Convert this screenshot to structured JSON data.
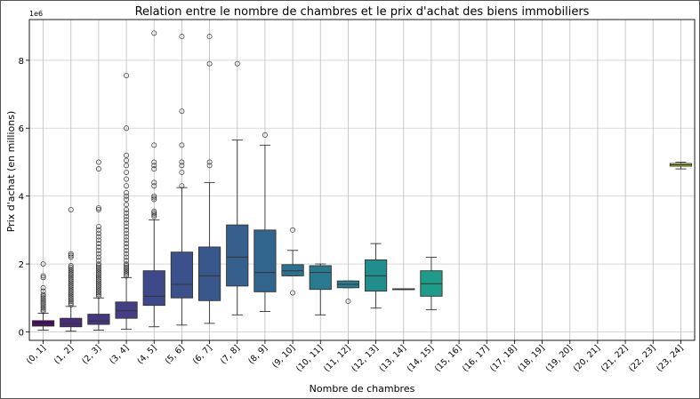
{
  "chart_data": {
    "type": "box",
    "title": "Relation entre le nombre de chambres et le prix d'achat des biens immobiliers",
    "xlabel": "Nombre de chambres",
    "ylabel": "Prix d'achat (en millions)",
    "y_offset_label": "1e6",
    "y_ticks": [
      0,
      2,
      4,
      6,
      8
    ],
    "ylim": [
      -0.25,
      9.2
    ],
    "grid": true,
    "legend": "none",
    "categories": [
      "(0, 1]",
      "(1, 2]",
      "(2, 3]",
      "(3, 4]",
      "(4, 5]",
      "(5, 6]",
      "(6, 7]",
      "(7, 8]",
      "(8, 9]",
      "(9, 10]",
      "(10, 11]",
      "(11, 12]",
      "(12, 13]",
      "(13, 14]",
      "(14, 15]",
      "(15, 16]",
      "(16, 17]",
      "(17, 18]",
      "(18, 19]",
      "(19, 20]",
      "(20, 21]",
      "(21, 22]",
      "(22, 23]",
      "(23, 24]"
    ],
    "boxes": [
      {
        "category": "(0, 1]",
        "color": "#46085c",
        "whisker_low": 0.05,
        "q1": 0.17,
        "median": 0.22,
        "q3": 0.33,
        "whisker_high": 0.55,
        "outliers": [
          0.6,
          0.65,
          0.7,
          0.75,
          0.8,
          0.85,
          0.9,
          0.95,
          1.0,
          1.05,
          1.1,
          1.2,
          1.3,
          1.6,
          1.65,
          2.0
        ]
      },
      {
        "category": "(1, 2]",
        "color": "#472c7a",
        "whisker_low": 0.02,
        "q1": 0.15,
        "median": 0.24,
        "q3": 0.4,
        "whisker_high": 0.75,
        "outliers": [
          0.8,
          0.85,
          0.9,
          0.95,
          1.0,
          1.05,
          1.1,
          1.15,
          1.2,
          1.25,
          1.3,
          1.35,
          1.4,
          1.45,
          1.5,
          1.55,
          1.6,
          1.65,
          1.7,
          1.75,
          1.8,
          1.85,
          1.9,
          1.95,
          2.2,
          2.25,
          2.3,
          3.6
        ]
      },
      {
        "category": "(2, 3]",
        "color": "#453781",
        "whisker_low": 0.05,
        "q1": 0.22,
        "median": 0.32,
        "q3": 0.52,
        "whisker_high": 1.0,
        "outliers": [
          1.05,
          1.1,
          1.15,
          1.2,
          1.25,
          1.3,
          1.35,
          1.4,
          1.45,
          1.5,
          1.55,
          1.6,
          1.65,
          1.7,
          1.75,
          1.8,
          1.85,
          1.9,
          1.95,
          2.0,
          2.1,
          2.2,
          2.3,
          2.4,
          2.5,
          2.6,
          2.7,
          2.8,
          2.9,
          3.0,
          3.1,
          3.6,
          3.65,
          4.8,
          5.0
        ]
      },
      {
        "category": "(3, 4]",
        "color": "#433e85",
        "whisker_low": 0.08,
        "q1": 0.4,
        "median": 0.62,
        "q3": 0.88,
        "whisker_high": 1.6,
        "outliers": [
          1.65,
          1.7,
          1.75,
          1.8,
          1.85,
          1.9,
          1.95,
          2.0,
          2.1,
          2.2,
          2.3,
          2.4,
          2.5,
          2.6,
          2.7,
          2.8,
          2.9,
          3.0,
          3.1,
          3.2,
          3.3,
          3.4,
          3.5,
          3.6,
          3.75,
          3.9,
          4.0,
          4.1,
          4.3,
          4.5,
          4.7,
          4.9,
          5.05,
          5.2,
          6.0,
          7.55
        ]
      },
      {
        "category": "(4, 5]",
        "color": "#3e4989",
        "whisker_low": 0.15,
        "q1": 0.78,
        "median": 1.05,
        "q3": 1.8,
        "whisker_high": 3.3,
        "outliers": [
          3.4,
          3.45,
          3.5,
          3.55,
          3.9,
          3.95,
          4.0,
          4.3,
          4.4,
          4.8,
          4.9,
          5.0,
          5.5,
          8.8
        ]
      },
      {
        "category": "(5, 6]",
        "color": "#3b518b",
        "whisker_low": 0.2,
        "q1": 1.0,
        "median": 1.4,
        "q3": 2.35,
        "whisker_high": 4.25,
        "outliers": [
          4.3,
          4.7,
          4.9,
          5.0,
          5.5,
          6.5,
          8.7
        ]
      },
      {
        "category": "(6, 7]",
        "color": "#38588c",
        "whisker_low": 0.25,
        "q1": 0.92,
        "median": 1.65,
        "q3": 2.5,
        "whisker_high": 4.4,
        "outliers": [
          4.9,
          5.0,
          7.9,
          8.7
        ]
      },
      {
        "category": "(7, 8]",
        "color": "#355f8d",
        "whisker_low": 0.5,
        "q1": 1.35,
        "median": 2.2,
        "q3": 3.15,
        "whisker_high": 5.65,
        "outliers": [
          7.9
        ]
      },
      {
        "category": "(8, 9]",
        "color": "#32658e",
        "whisker_low": 0.6,
        "q1": 1.18,
        "median": 1.75,
        "q3": 3.0,
        "whisker_high": 5.5,
        "outliers": [
          5.8
        ]
      },
      {
        "category": "(9, 10]",
        "color": "#2c728e",
        "whisker_low": 1.65,
        "q1": 1.65,
        "median": 1.8,
        "q3": 1.98,
        "whisker_high": 2.4,
        "outliers": [
          1.15,
          3.0
        ]
      },
      {
        "category": "(10, 11]",
        "color": "#297a8e",
        "whisker_low": 0.5,
        "q1": 1.25,
        "median": 1.75,
        "q3": 1.95,
        "whisker_high": 2.0,
        "outliers": []
      },
      {
        "category": "(11, 12]",
        "color": "#26818e",
        "whisker_low": 1.3,
        "q1": 1.3,
        "median": 1.4,
        "q3": 1.5,
        "whisker_high": 1.5,
        "outliers": [
          0.9
        ]
      },
      {
        "category": "(12, 13]",
        "color": "#228d8d",
        "whisker_low": 0.7,
        "q1": 1.2,
        "median": 1.65,
        "q3": 2.12,
        "whisker_high": 2.6,
        "outliers": []
      },
      {
        "category": "(13, 14]",
        "color": "#1f948c",
        "whisker_low": 1.25,
        "q1": 1.25,
        "median": 1.25,
        "q3": 1.27,
        "whisker_high": 1.27,
        "outliers": []
      },
      {
        "category": "(14, 15]",
        "color": "#1e9c89",
        "whisker_low": 0.65,
        "q1": 1.05,
        "median": 1.42,
        "q3": 1.8,
        "whisker_high": 2.2,
        "outliers": []
      },
      {
        "category": "(23, 24]",
        "color": "#d2e21b",
        "whisker_low": 4.8,
        "q1": 4.88,
        "median": 4.92,
        "q3": 4.96,
        "whisker_high": 5.0,
        "outliers": []
      }
    ]
  }
}
